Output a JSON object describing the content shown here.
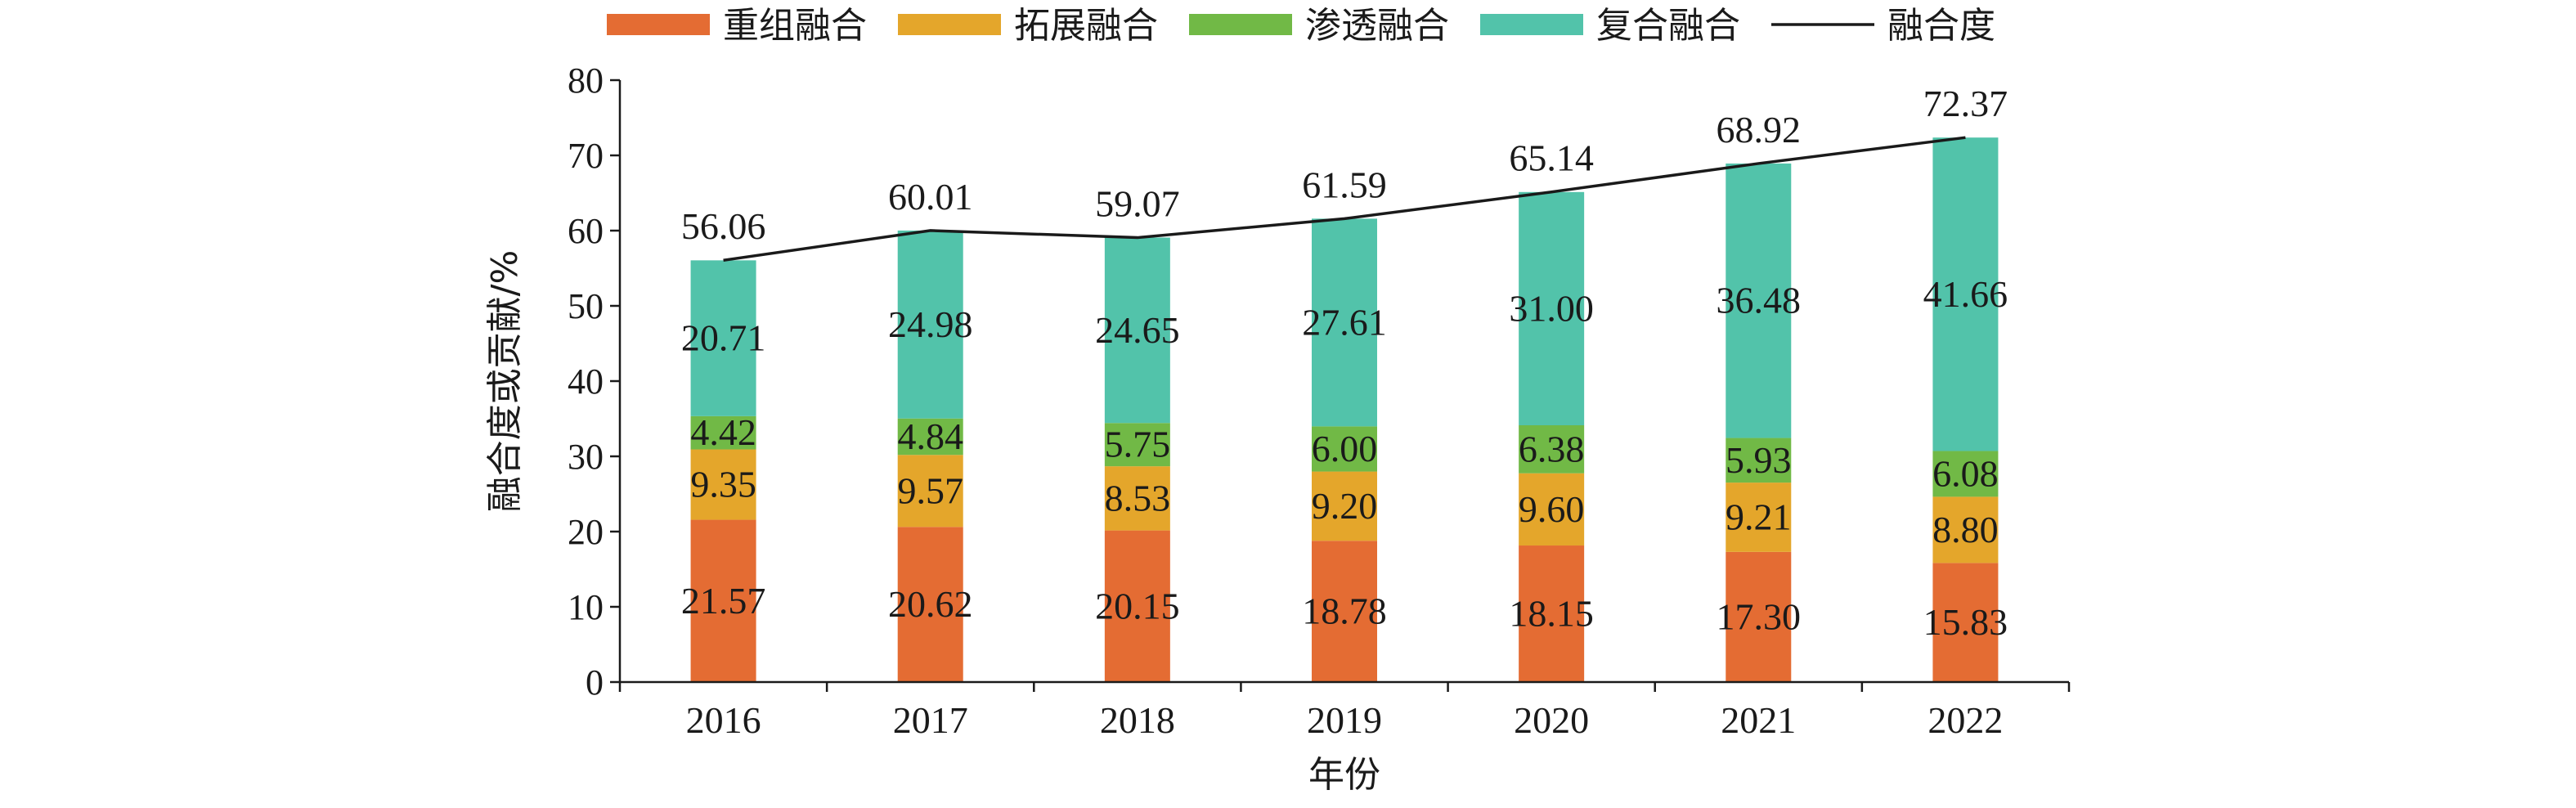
{
  "chart_data": {
    "type": "bar",
    "stacked": true,
    "categories": [
      "2016",
      "2017",
      "2018",
      "2019",
      "2020",
      "2021",
      "2022"
    ],
    "series": [
      {
        "name": "重组融合",
        "color": "#E46C33",
        "values": [
          21.57,
          20.62,
          20.15,
          18.78,
          18.15,
          17.3,
          15.83
        ],
        "labels": [
          "21.57",
          "20.62",
          "20.15",
          "18.78",
          "18.15",
          "17.30",
          "15.83"
        ]
      },
      {
        "name": "拓展融合",
        "color": "#E4A62B",
        "values": [
          9.35,
          9.57,
          8.53,
          9.2,
          9.6,
          9.21,
          8.8
        ],
        "labels": [
          "9.35",
          "9.57",
          "8.53",
          "9.20",
          "9.60",
          "9.21",
          "8.80"
        ]
      },
      {
        "name": "渗透融合",
        "color": "#71B946",
        "values": [
          4.42,
          4.84,
          5.75,
          6.0,
          6.38,
          5.93,
          6.08
        ],
        "labels": [
          "4.42",
          "4.84",
          "5.75",
          "6.00",
          "6.38",
          "5.93",
          "6.08"
        ]
      },
      {
        "name": "复合融合",
        "color": "#52C3AA",
        "values": [
          20.71,
          24.98,
          24.65,
          27.61,
          31.0,
          36.48,
          41.66
        ],
        "labels": [
          "20.71",
          "24.98",
          "24.65",
          "27.61",
          "31.00",
          "36.48",
          "41.66"
        ]
      }
    ],
    "line_series": {
      "name": "融合度",
      "color": "#1a1a1a",
      "values": [
        56.06,
        60.01,
        59.07,
        61.59,
        65.14,
        68.92,
        72.37
      ],
      "labels": [
        "56.06",
        "60.01",
        "59.07",
        "61.59",
        "65.14",
        "68.92",
        "72.37"
      ]
    },
    "xlabel": "年份",
    "ylabel": "融合度或贡献/%",
    "ylim": [
      0,
      80
    ],
    "yticks": [
      0,
      10,
      20,
      30,
      40,
      50,
      60,
      70,
      80
    ],
    "legend_position": "top",
    "grid": false
  }
}
